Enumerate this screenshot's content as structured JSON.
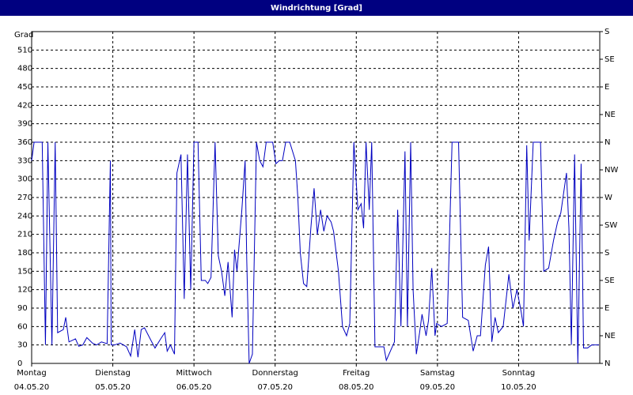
{
  "chart_data": {
    "type": "line",
    "title": "Windrichtung [Grad]",
    "y_label": "Grad",
    "xlim": [
      0,
      7
    ],
    "xticks": [
      {
        "value": 0,
        "label": "Montag"
      },
      {
        "value": 1,
        "label": "Dienstag"
      },
      {
        "value": 2,
        "label": "Mittwoch"
      },
      {
        "value": 3,
        "label": "Donnerstag"
      },
      {
        "value": 4,
        "label": "Freitag"
      },
      {
        "value": 5,
        "label": "Samstag"
      },
      {
        "value": 6,
        "label": "Sonntag"
      }
    ],
    "xtick_dates": [
      "04.05.20",
      "05.05.20",
      "06.05.20",
      "07.05.20",
      "08.05.20",
      "09.05.20",
      "10.05.20"
    ],
    "ylim": [
      0,
      540
    ],
    "yticks": [
      0,
      30,
      60,
      90,
      120,
      150,
      180,
      210,
      240,
      270,
      300,
      330,
      360,
      390,
      420,
      450,
      480,
      510
    ],
    "y2lim": [
      0,
      540
    ],
    "y2ticks": [
      {
        "value": 0,
        "label": "N"
      },
      {
        "value": 45,
        "label": "NE"
      },
      {
        "value": 90,
        "label": "E"
      },
      {
        "value": 135,
        "label": "SE"
      },
      {
        "value": 180,
        "label": "S"
      },
      {
        "value": 225,
        "label": "SW"
      },
      {
        "value": 270,
        "label": "W"
      },
      {
        "value": 315,
        "label": "NW"
      },
      {
        "value": 360,
        "label": "N"
      },
      {
        "value": 405,
        "label": "NE"
      },
      {
        "value": 450,
        "label": "E"
      },
      {
        "value": 495,
        "label": "SE"
      },
      {
        "value": 540,
        "label": "S"
      }
    ],
    "grid": true,
    "series": [
      {
        "color": "#0000c0",
        "x": [
          0.0,
          0.03,
          0.13,
          0.17,
          0.2,
          0.25,
          0.29,
          0.32,
          0.39,
          0.42,
          0.46,
          0.54,
          0.58,
          0.63,
          0.68,
          0.75,
          0.8,
          0.86,
          0.93,
          0.97,
          0.98,
          1.02,
          1.09,
          1.17,
          1.22,
          1.27,
          1.31,
          1.35,
          1.39,
          1.46,
          1.52,
          1.59,
          1.64,
          1.67,
          1.71,
          1.76,
          1.79,
          1.84,
          1.88,
          1.92,
          1.96,
          2.0,
          2.05,
          2.09,
          2.14,
          2.17,
          2.21,
          2.26,
          2.3,
          2.34,
          2.38,
          2.42,
          2.47,
          2.5,
          2.53,
          2.59,
          2.63,
          2.65,
          2.68,
          2.72,
          2.77,
          2.81,
          2.85,
          2.89,
          2.97,
          3.01,
          3.05,
          3.09,
          3.13,
          3.18,
          3.25,
          3.28,
          3.31,
          3.35,
          3.39,
          3.44,
          3.48,
          3.52,
          3.56,
          3.6,
          3.64,
          3.69,
          3.72,
          3.78,
          3.83,
          3.88,
          3.92,
          3.97,
          4.02,
          4.06,
          4.09,
          4.12,
          4.16,
          4.19,
          4.23,
          4.29,
          4.34,
          4.37,
          4.42,
          4.47,
          4.51,
          4.55,
          4.6,
          4.63,
          4.67,
          4.7,
          4.74,
          4.78,
          4.81,
          4.86,
          4.89,
          4.93,
          4.97,
          4.99,
          5.05,
          5.12,
          5.18,
          5.26,
          5.31,
          5.38,
          5.44,
          5.49,
          5.53,
          5.59,
          5.63,
          5.67,
          5.71,
          5.75,
          5.81,
          5.88,
          5.93,
          5.98,
          6.03,
          6.06,
          6.1,
          6.13,
          6.18,
          6.21,
          6.27,
          6.31,
          6.37,
          6.43,
          6.48,
          6.52,
          6.59,
          6.62,
          6.65,
          6.69,
          6.73,
          6.77,
          6.8,
          6.85,
          6.9,
          6.99
        ],
        "values": [
          330,
          360,
          360,
          30,
          360,
          30,
          360,
          50,
          55,
          75,
          35,
          40,
          28,
          30,
          42,
          33,
          30,
          35,
          32,
          330,
          30,
          30,
          33,
          27,
          12,
          55,
          10,
          55,
          58,
          40,
          25,
          40,
          50,
          20,
          30,
          15,
          310,
          340,
          105,
          340,
          120,
          360,
          360,
          135,
          135,
          130,
          140,
          360,
          175,
          150,
          110,
          165,
          75,
          185,
          150,
          250,
          330,
          170,
          0,
          15,
          360,
          330,
          320,
          360,
          360,
          325,
          330,
          330,
          360,
          360,
          330,
          270,
          180,
          130,
          125,
          220,
          285,
          210,
          250,
          215,
          240,
          230,
          215,
          150,
          60,
          45,
          65,
          360,
          250,
          260,
          220,
          360,
          250,
          360,
          27,
          27,
          27,
          5,
          20,
          35,
          250,
          60,
          345,
          60,
          360,
          120,
          15,
          50,
          80,
          45,
          70,
          155,
          45,
          65,
          60,
          65,
          360,
          360,
          75,
          70,
          20,
          45,
          45,
          160,
          190,
          35,
          75,
          50,
          60,
          145,
          90,
          120,
          85,
          60,
          355,
          200,
          360,
          360,
          360,
          150,
          155,
          200,
          230,
          245,
          310,
          220,
          30,
          340,
          0,
          325,
          25,
          25,
          30,
          30
        ]
      }
    ]
  }
}
